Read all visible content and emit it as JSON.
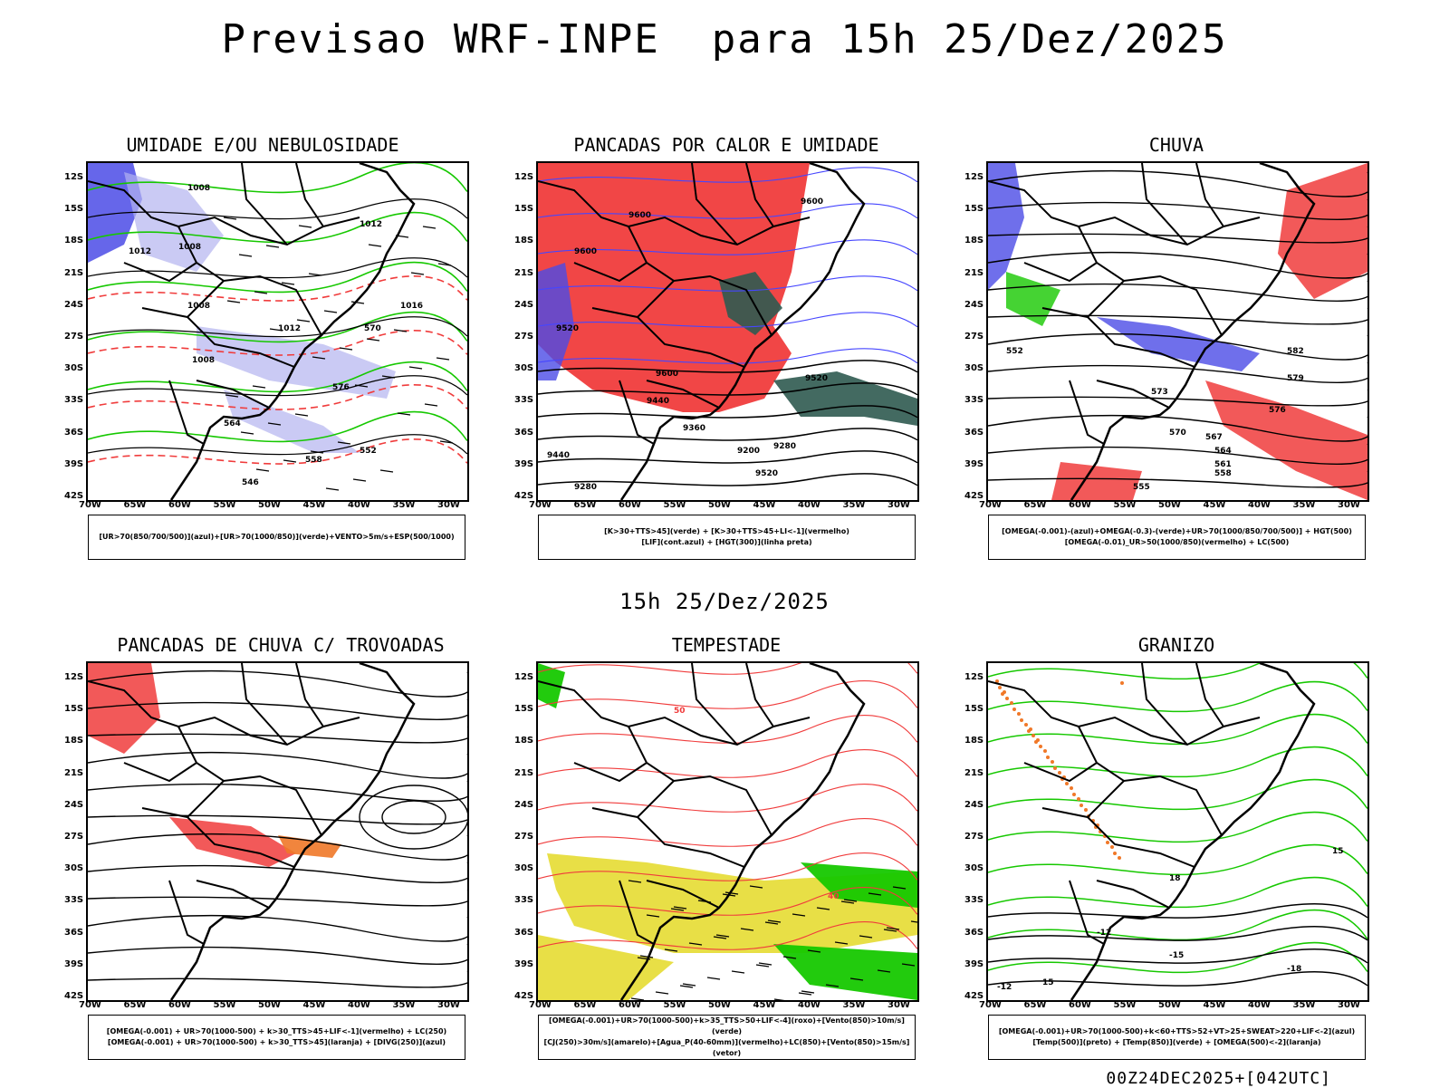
{
  "header": {
    "title": "Previsao WRF-INPE  para 15h 25/Dez/2025",
    "subtitle": "15h 25/Dez/2025",
    "footer": "00Z24DEC2025+[042UTC]"
  },
  "axes": {
    "lat_labels": [
      "12S",
      "15S",
      "18S",
      "21S",
      "24S",
      "27S",
      "30S",
      "33S",
      "36S",
      "39S",
      "42S"
    ],
    "lon_labels": [
      "70W",
      "65W",
      "60W",
      "55W",
      "50W",
      "45W",
      "40W",
      "35W",
      "30W"
    ]
  },
  "colors": {
    "blue_shade": "#4b4be6",
    "light_blue": "#b4b4f0",
    "green": "#16c800",
    "red": "#f03c3c",
    "dark_teal": "#2f5a50",
    "yellow": "#e6dc32",
    "orange": "#f07828"
  },
  "panels": [
    {
      "id": "umidade",
      "title": "UMIDADE E/OU NEBULOSIDADE",
      "legend": [
        "[UR>70(850/700/500)](azul)+[UR>70(1000/850)](verde)+VENTO>5m/s+ESP(500/1000)"
      ],
      "contour_labels": [
        "1008",
        "1008",
        "1012",
        "1008",
        "1012",
        "1012",
        "1008",
        "1016",
        "576",
        "570",
        "564",
        "558",
        "552",
        "546"
      ]
    },
    {
      "id": "pancadas-calor",
      "title": "PANCADAS POR CALOR E UMIDADE",
      "legend": [
        "[K>30+TTS>45](verde) + [K>30+TTS>45+LI<-1](vermelho)",
        "[LIF](cont.azul) + [HGT(300)](linha preta)"
      ],
      "contour_labels": [
        "9600",
        "9600",
        "9600",
        "9520",
        "9600",
        "9520",
        "9440",
        "9360",
        "9280",
        "9200",
        "9520",
        "9440",
        "9280"
      ]
    },
    {
      "id": "chuva",
      "title": "CHUVA",
      "legend": [
        "[OMEGA(-0.001)-(azul)+OMEGA(-0.3)-(verde)+UR>70(1000/850/700/500)] + HGT(500)",
        "[OMEGA(-0.01)_UR>50(1000/850)(vermelho) + LC(500)"
      ],
      "contour_labels": [
        "582",
        "579",
        "576",
        "573",
        "570",
        "567",
        "564",
        "561",
        "558",
        "555",
        "552"
      ]
    },
    {
      "id": "pancadas-trovoadas",
      "title": "PANCADAS DE CHUVA C/ TROVOADAS",
      "legend": [
        "[OMEGA(-0.001) + UR>70(1000-500) + k>30_TTS>45+LIF<-1](vermelho) + LC(250)",
        "[OMEGA(-0.001) + UR>70(1000-500) + k>30_TTS>45](laranja) + [DIVG(250)](azul)"
      ],
      "contour_labels": []
    },
    {
      "id": "tempestade",
      "title": "TEMPESTADE",
      "legend": [
        "[OMEGA(-0.001)+UR>70(1000-500)+k>35_TTS>50+LIF<-4](roxo)+[Vento(850)>10m/s](verde)",
        "[CJ(250)>30m/s](amarelo)+[Agua_P(40-60mm)](vermelho)+LC(850)+[Vento(850)>15m/s](vetor)"
      ],
      "contour_labels": [
        "40",
        "50"
      ]
    },
    {
      "id": "granizo",
      "title": "GRANIZO",
      "legend": [
        "[OMEGA(-0.001)+UR>70(1000-500)+k<60+TTS>52+VT>25+SWEAT>220+LIF<-2](azul)",
        "[Temp(500)](preto) + [Temp(850)](verde) + [OMEGA(500)<-2](laranja)"
      ],
      "contour_labels": [
        "15",
        "18",
        "-12",
        "-15",
        "-18",
        "15",
        "-12"
      ]
    }
  ]
}
